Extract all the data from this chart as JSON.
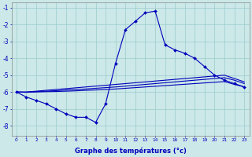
{
  "background_color": "#cce8e8",
  "grid_color": "#99cccc",
  "line_color": "#0000bb",
  "xlabel": "Graphe des températures (°c)",
  "xlim": [
    -0.5,
    23.5
  ],
  "ylim": [
    -8.6,
    -0.7
  ],
  "yticks": [
    -8,
    -7,
    -6,
    -5,
    -4,
    -3,
    -2,
    -1
  ],
  "xticks": [
    0,
    1,
    2,
    3,
    4,
    5,
    6,
    7,
    8,
    9,
    10,
    11,
    12,
    13,
    14,
    15,
    16,
    17,
    18,
    19,
    20,
    21,
    22,
    23
  ],
  "hours": [
    0,
    1,
    2,
    3,
    4,
    5,
    6,
    7,
    8,
    9,
    10,
    11,
    12,
    13,
    14,
    15,
    16,
    17,
    18,
    19,
    20,
    21,
    22,
    23
  ],
  "temp_main": [
    -6.0,
    -6.3,
    -6.5,
    -6.7,
    -7.0,
    -7.3,
    -7.5,
    -7.5,
    -7.8,
    -6.7,
    -4.3,
    -2.3,
    -1.8,
    -1.3,
    -1.2,
    -3.2,
    -3.5,
    -3.7,
    -4.0,
    -4.5,
    -5.0,
    -5.3,
    -5.5,
    -5.7
  ],
  "temp_line2": [
    -6.0,
    -6.0,
    -5.95,
    -5.9,
    -5.85,
    -5.8,
    -5.75,
    -5.7,
    -5.65,
    -5.6,
    -5.55,
    -5.5,
    -5.45,
    -5.4,
    -5.35,
    -5.3,
    -5.25,
    -5.2,
    -5.15,
    -5.1,
    -5.05,
    -5.0,
    -5.2,
    -5.4
  ],
  "temp_line3": [
    -6.0,
    -6.0,
    -5.97,
    -5.95,
    -5.92,
    -5.88,
    -5.85,
    -5.82,
    -5.78,
    -5.74,
    -5.7,
    -5.65,
    -5.6,
    -5.55,
    -5.5,
    -5.45,
    -5.4,
    -5.35,
    -5.3,
    -5.25,
    -5.2,
    -5.15,
    -5.3,
    -5.5
  ],
  "temp_line4": [
    -6.0,
    -6.02,
    -6.0,
    -5.98,
    -5.97,
    -5.95,
    -5.93,
    -5.9,
    -5.88,
    -5.85,
    -5.82,
    -5.78,
    -5.74,
    -5.7,
    -5.66,
    -5.62,
    -5.58,
    -5.54,
    -5.5,
    -5.46,
    -5.42,
    -5.38,
    -5.55,
    -5.7
  ]
}
